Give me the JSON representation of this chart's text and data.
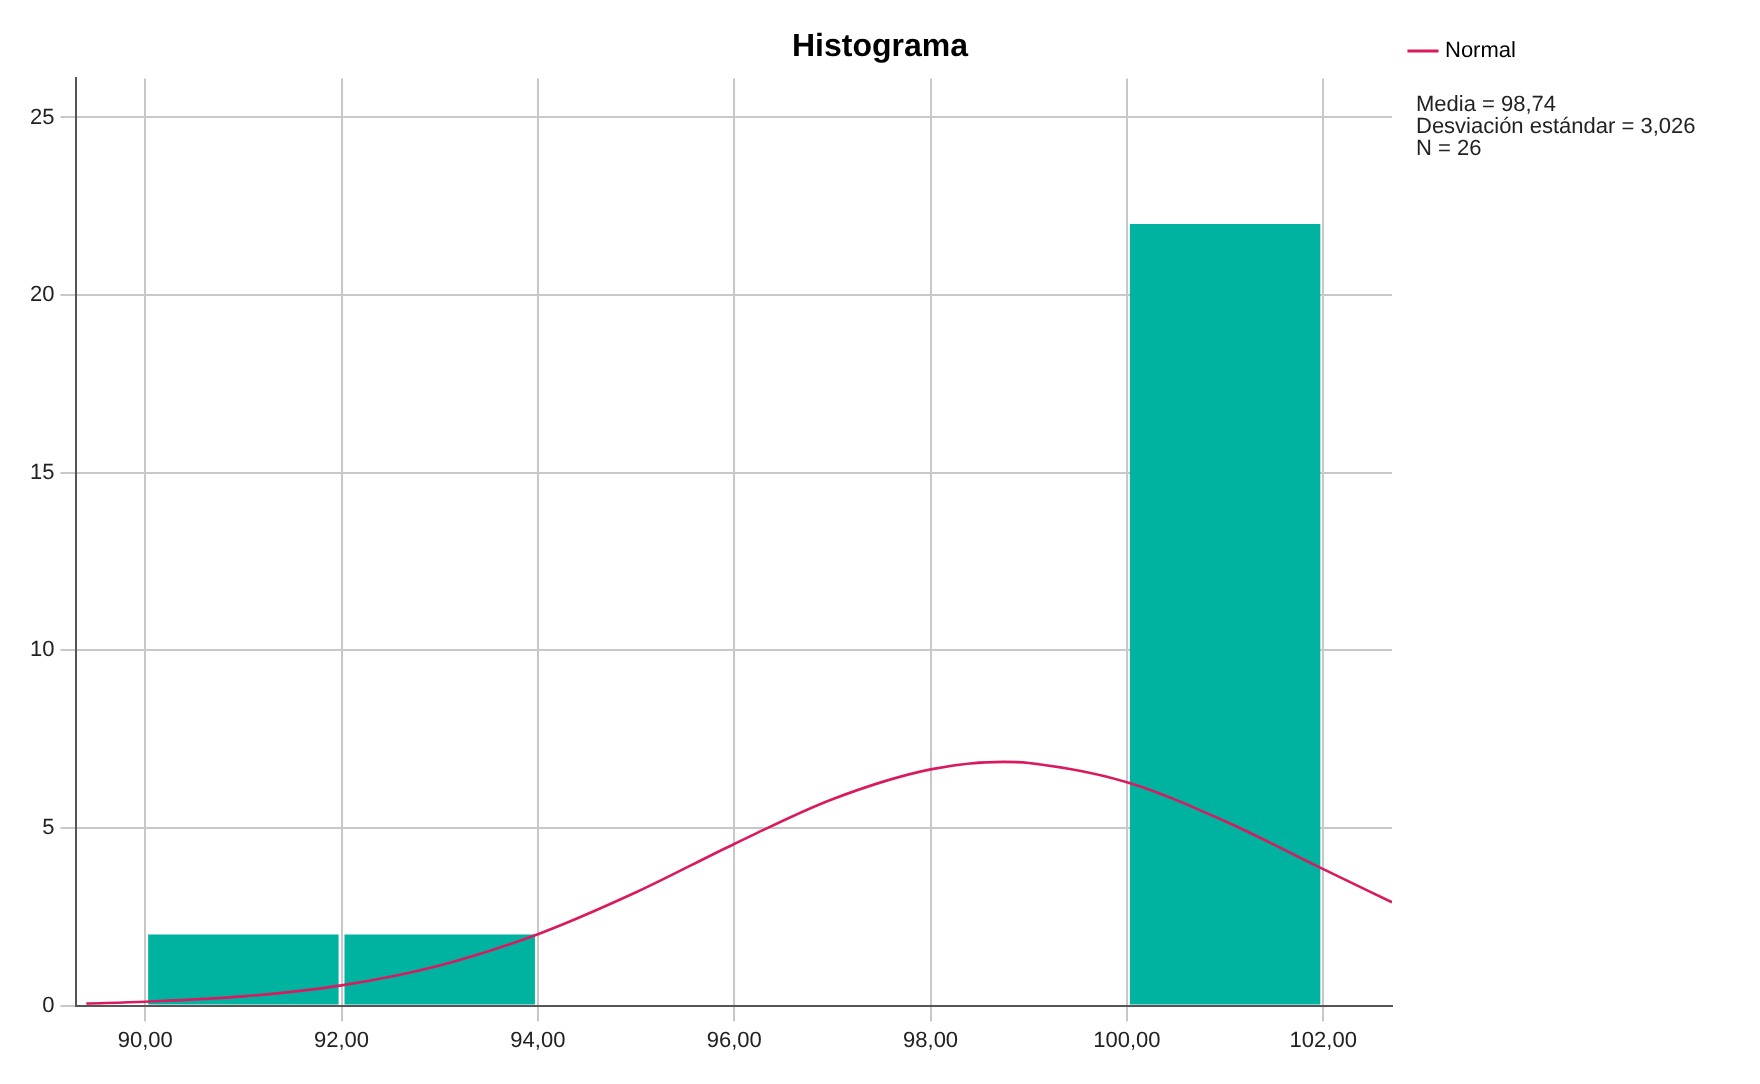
{
  "chart_data": {
    "type": "histogram",
    "title": "Histograma",
    "bins": [
      90,
      92,
      94,
      96,
      98,
      100,
      102
    ],
    "values": [
      2,
      2,
      0,
      0,
      0,
      22
    ],
    "color": "#00b2a0",
    "series": [
      {
        "type": "line",
        "name": "Normal",
        "color": "#d81b60",
        "x": [
          89.4,
          90,
          91,
          92,
          93,
          94,
          95,
          96,
          97,
          98,
          98.74,
          99,
          100,
          101,
          102,
          102.7
        ],
        "values": [
          0.06,
          0.11,
          0.26,
          0.57,
          1.13,
          2.01,
          3.19,
          4.55,
          5.81,
          6.65,
          6.86,
          6.83,
          6.29,
          5.19,
          3.84,
          2.91
        ]
      }
    ],
    "xlim": [
      89.3,
      102.7
    ],
    "ylim": [
      0,
      26.1
    ],
    "xticks": [
      {
        "value": 90,
        "label": "90,00"
      },
      {
        "value": 92,
        "label": "92,00"
      },
      {
        "value": 94,
        "label": "94,00"
      },
      {
        "value": 96,
        "label": "96,00"
      },
      {
        "value": 98,
        "label": "98,00"
      },
      {
        "value": 100,
        "label": "100,00"
      },
      {
        "value": 102,
        "label": "102,00"
      }
    ],
    "yticks": [
      0,
      5,
      10,
      15,
      20,
      25
    ],
    "grid": true,
    "legend": "top right",
    "marker": "none",
    "annotations": [
      "Media = 98,74",
      "Desviación estándar = 3,026",
      "N = 26"
    ]
  }
}
